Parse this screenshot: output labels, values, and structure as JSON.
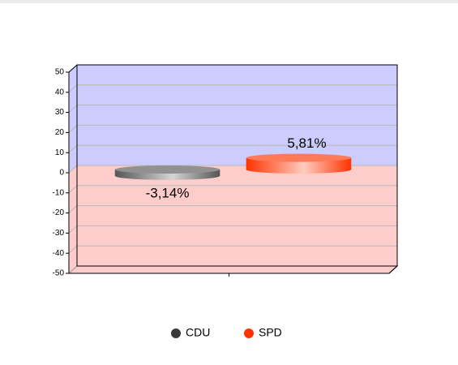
{
  "chart_data": {
    "type": "bar",
    "categories": [
      null
    ],
    "series": [
      {
        "name": "CDU",
        "color": "#555555",
        "values": [
          -3.14
        ],
        "value_labels": [
          "-3,14%"
        ]
      },
      {
        "name": "SPD",
        "color": "#ff3300",
        "values": [
          5.81
        ],
        "value_labels": [
          "5,81%"
        ]
      }
    ],
    "ylim": [
      -50,
      50
    ],
    "yticks": [
      -50,
      -40,
      -30,
      -20,
      -10,
      0,
      10,
      20,
      30,
      40,
      50
    ],
    "grid": true,
    "legend": "bottom"
  }
}
